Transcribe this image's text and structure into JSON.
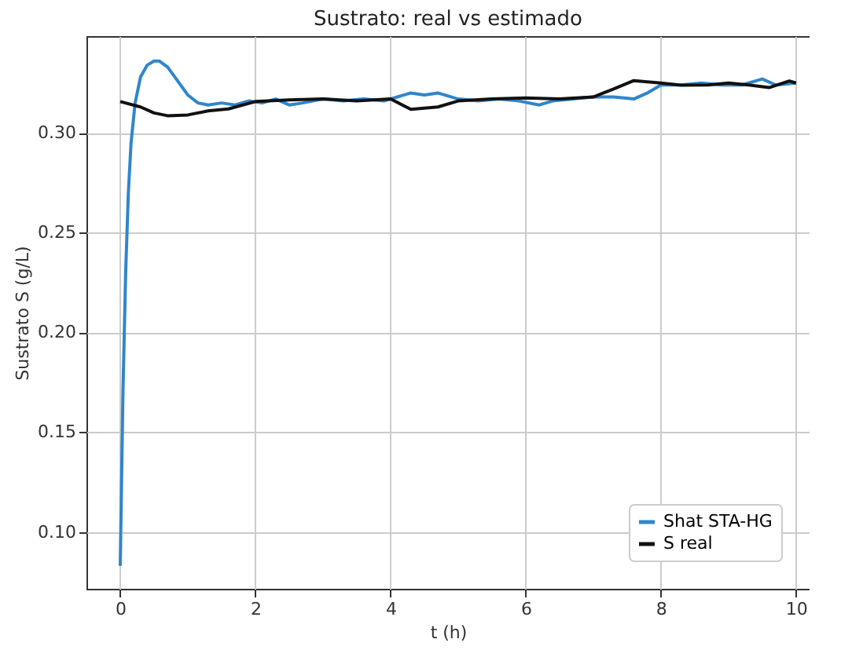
{
  "chart_data": {
    "type": "line",
    "title": "Sustrato: real vs estimado",
    "xlabel": "t (h)",
    "ylabel": "Sustrato S (g/L)",
    "xlim": [
      -0.5,
      10.2
    ],
    "ylim": [
      0.0715,
      0.3485
    ],
    "xticks": [
      0,
      2,
      4,
      6,
      8,
      10
    ],
    "yticks": [
      {
        "value": 0.1,
        "label": "0.10"
      },
      0.15,
      {
        "value": 0.2,
        "label": "0.20"
      },
      0.25,
      {
        "value": 0.3,
        "label": "0.30"
      }
    ],
    "grid": true,
    "legend": "bottom right",
    "series": [
      {
        "name": "Shat STA-HG",
        "color": "#2f86cc",
        "x": [
          0,
          0.04,
          0.08,
          0.12,
          0.16,
          0.22,
          0.3,
          0.4,
          0.5,
          0.58,
          0.7,
          0.85,
          1.0,
          1.15,
          1.3,
          1.5,
          1.7,
          1.9,
          2.1,
          2.3,
          2.5,
          2.7,
          3.0,
          3.3,
          3.6,
          3.9,
          4.1,
          4.3,
          4.5,
          4.7,
          5.0,
          5.3,
          5.6,
          5.9,
          6.2,
          6.4,
          6.7,
          7.0,
          7.3,
          7.6,
          7.8,
          8.0,
          8.3,
          8.6,
          8.9,
          9.2,
          9.5,
          9.7,
          10.0
        ],
        "values": [
          0.083,
          0.17,
          0.23,
          0.27,
          0.295,
          0.315,
          0.328,
          0.334,
          0.336,
          0.336,
          0.333,
          0.326,
          0.319,
          0.315,
          0.314,
          0.315,
          0.314,
          0.316,
          0.315,
          0.317,
          0.314,
          0.315,
          0.317,
          0.316,
          0.317,
          0.316,
          0.318,
          0.32,
          0.319,
          0.32,
          0.317,
          0.316,
          0.317,
          0.316,
          0.314,
          0.316,
          0.317,
          0.318,
          0.318,
          0.317,
          0.32,
          0.324,
          0.324,
          0.325,
          0.324,
          0.324,
          0.327,
          0.324,
          0.325
        ]
      },
      {
        "name": "S real",
        "color": "#111111",
        "x": [
          0,
          0.3,
          0.5,
          0.7,
          1.0,
          1.3,
          1.6,
          2.0,
          2.5,
          3.0,
          3.5,
          4.0,
          4.3,
          4.7,
          5.0,
          5.5,
          6.0,
          6.5,
          7.0,
          7.3,
          7.6,
          8.0,
          8.3,
          8.7,
          9.0,
          9.3,
          9.6,
          9.9,
          10.0
        ],
        "values": [
          0.3157,
          0.313,
          0.31,
          0.3086,
          0.309,
          0.311,
          0.312,
          0.3157,
          0.3165,
          0.317,
          0.316,
          0.317,
          0.3118,
          0.313,
          0.316,
          0.317,
          0.3175,
          0.317,
          0.318,
          0.322,
          0.3262,
          0.325,
          0.3239,
          0.324,
          0.325,
          0.324,
          0.3227,
          0.326,
          0.325
        ]
      }
    ]
  }
}
